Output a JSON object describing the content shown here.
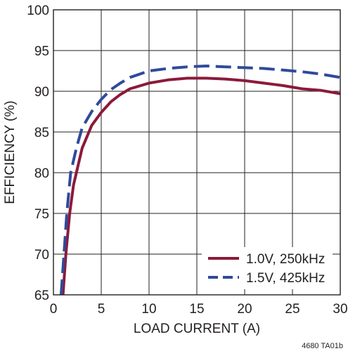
{
  "chart_data": {
    "type": "line",
    "xlabel": "LOAD CURRENT (A)",
    "ylabel": "EFFICIENCY (%)",
    "xlim": [
      0,
      30
    ],
    "ylim": [
      65,
      100
    ],
    "xticks": [
      "0",
      "5",
      "10",
      "15",
      "20",
      "25",
      "30"
    ],
    "yticks": [
      "65",
      "70",
      "75",
      "80",
      "85",
      "90",
      "95",
      "100"
    ],
    "grid": true,
    "legend_position": "bottom-right",
    "series": [
      {
        "name": "1.0V, 250kHz",
        "color": "#8b1a3b",
        "dash": "solid",
        "points": [
          [
            1.0,
            65
          ],
          [
            1.3,
            70
          ],
          [
            1.7,
            75
          ],
          [
            2.1,
            78.5
          ],
          [
            3,
            83
          ],
          [
            4,
            85.8
          ],
          [
            5,
            87.4
          ],
          [
            6,
            88.7
          ],
          [
            7,
            89.6
          ],
          [
            8,
            90.3
          ],
          [
            10,
            91.0
          ],
          [
            12,
            91.4
          ],
          [
            14,
            91.6
          ],
          [
            16,
            91.6
          ],
          [
            18,
            91.5
          ],
          [
            20,
            91.3
          ],
          [
            22,
            91.0
          ],
          [
            24,
            90.7
          ],
          [
            26,
            90.3
          ],
          [
            28,
            90.1
          ],
          [
            30,
            89.7
          ]
        ]
      },
      {
        "name": "1.5V, 425kHz",
        "color": "#2f4a9b",
        "dash": "dashed",
        "points": [
          [
            0.8,
            65
          ],
          [
            1.1,
            70
          ],
          [
            1.4,
            75
          ],
          [
            1.8,
            80
          ],
          [
            2.4,
            83
          ],
          [
            3,
            85.5
          ],
          [
            4,
            87.5
          ],
          [
            5,
            89.0
          ],
          [
            6,
            90.2
          ],
          [
            7,
            91.0
          ],
          [
            8,
            91.7
          ],
          [
            10,
            92.5
          ],
          [
            12,
            92.8
          ],
          [
            14,
            93.0
          ],
          [
            16,
            93.1
          ],
          [
            18,
            93.0
          ],
          [
            20,
            92.9
          ],
          [
            22,
            92.8
          ],
          [
            24,
            92.6
          ],
          [
            26,
            92.4
          ],
          [
            28,
            92.1
          ],
          [
            30,
            91.7
          ]
        ]
      }
    ],
    "footnote": "4680 TA01b"
  }
}
